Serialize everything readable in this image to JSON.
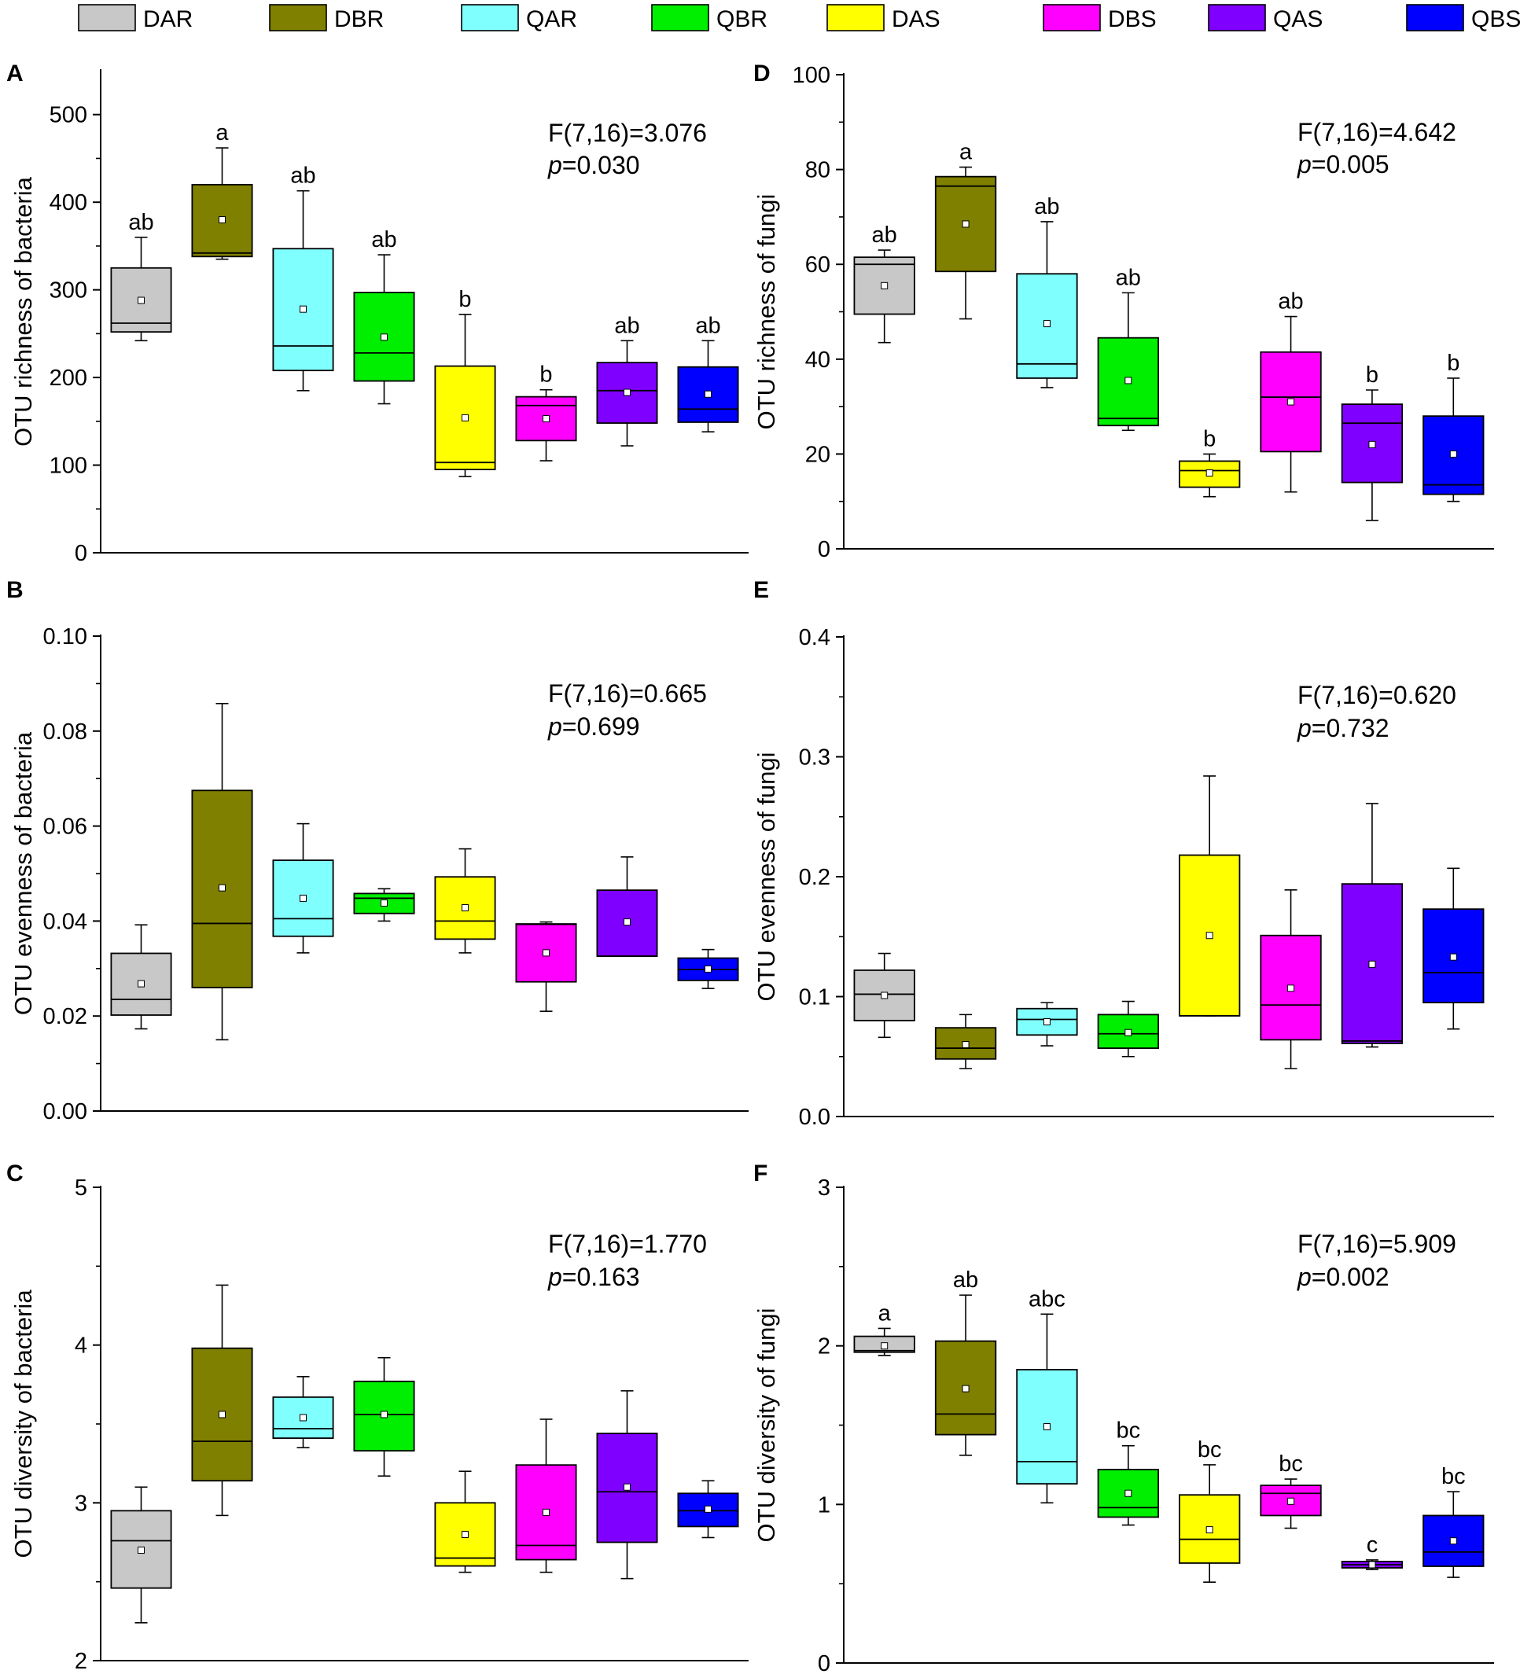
{
  "legend": [
    {
      "code": "DAR",
      "color": "#c8c8c8"
    },
    {
      "code": "DBR",
      "color": "#808000"
    },
    {
      "code": "QAR",
      "color": "#80ffff"
    },
    {
      "code": "QBR",
      "color": "#00ee00"
    },
    {
      "code": "DAS",
      "color": "#ffff00"
    },
    {
      "code": "DBS",
      "color": "#ff00ff"
    },
    {
      "code": "QAS",
      "color": "#8000ff"
    },
    {
      "code": "QBS",
      "color": "#0000ff"
    }
  ],
  "chart_data": [
    {
      "type": "box",
      "panel": "A",
      "ylabel": "OTU richness of bacteria",
      "ylim": [
        0,
        550
      ],
      "yticks": [
        0,
        100,
        200,
        300,
        400,
        500
      ],
      "tick_labels": [
        "0",
        "100",
        "200",
        "300",
        "400",
        "500"
      ],
      "stat_f": "F(7,16)=3.076",
      "stat_p": "=0.030",
      "boxes": [
        {
          "group": "DAR",
          "min": 242,
          "q1": 252,
          "median": 262,
          "q3": 325,
          "max": 360,
          "mean": 288,
          "letter": "ab"
        },
        {
          "group": "DBR",
          "min": 335,
          "q1": 338,
          "median": 342,
          "q3": 420,
          "max": 462,
          "mean": 380,
          "letter": "a"
        },
        {
          "group": "QAR",
          "min": 185,
          "q1": 208,
          "median": 236,
          "q3": 347,
          "max": 413,
          "mean": 278,
          "letter": "ab"
        },
        {
          "group": "QBR",
          "min": 170,
          "q1": 196,
          "median": 228,
          "q3": 297,
          "max": 340,
          "mean": 246,
          "letter": "ab"
        },
        {
          "group": "DAS",
          "min": 87,
          "q1": 95,
          "median": 103,
          "q3": 213,
          "max": 272,
          "mean": 154,
          "letter": "b"
        },
        {
          "group": "DBS",
          "min": 105,
          "q1": 128,
          "median": 168,
          "q3": 178,
          "max": 186,
          "mean": 153,
          "letter": "b"
        },
        {
          "group": "QAS",
          "min": 122,
          "q1": 148,
          "median": 185,
          "q3": 217,
          "max": 242,
          "mean": 183,
          "letter": "ab"
        },
        {
          "group": "QBS",
          "min": 138,
          "q1": 149,
          "median": 164,
          "q3": 212,
          "max": 242,
          "mean": 181,
          "letter": "ab"
        }
      ]
    },
    {
      "type": "box",
      "panel": "D",
      "ylabel": "OTU richness of fungi",
      "ylim": [
        0,
        100
      ],
      "yticks": [
        0,
        20,
        40,
        60,
        80,
        100
      ],
      "tick_labels": [
        "0",
        "20",
        "40",
        "60",
        "80",
        "100"
      ],
      "stat_f": "F(7,16)=4.642",
      "stat_p": "=0.005",
      "boxes": [
        {
          "group": "DAR",
          "min": 43.5,
          "q1": 49.5,
          "median": 60,
          "q3": 61.5,
          "max": 63,
          "mean": 55.5,
          "letter": "ab"
        },
        {
          "group": "DBR",
          "min": 48.5,
          "q1": 58.5,
          "median": 76.5,
          "q3": 78.5,
          "max": 80.5,
          "mean": 68.5,
          "letter": "a"
        },
        {
          "group": "QAR",
          "min": 34,
          "q1": 36,
          "median": 39,
          "q3": 58,
          "max": 69,
          "mean": 47.5,
          "letter": "ab"
        },
        {
          "group": "QBR",
          "min": 25,
          "q1": 26,
          "median": 27.5,
          "q3": 44.5,
          "max": 54,
          "mean": 35.5,
          "letter": "ab"
        },
        {
          "group": "DAS",
          "min": 11,
          "q1": 13,
          "median": 16.5,
          "q3": 18.5,
          "max": 20,
          "mean": 16,
          "letter": "b"
        },
        {
          "group": "DBS",
          "min": 12,
          "q1": 20.5,
          "median": 32,
          "q3": 41.5,
          "max": 49,
          "mean": 31,
          "letter": "ab"
        },
        {
          "group": "QAS",
          "min": 6,
          "q1": 14,
          "median": 26.5,
          "q3": 30.5,
          "max": 33.5,
          "mean": 22,
          "letter": "b"
        },
        {
          "group": "QBS",
          "min": 10,
          "q1": 11.5,
          "median": 13.5,
          "q3": 28,
          "max": 36,
          "mean": 20,
          "letter": "b"
        }
      ]
    },
    {
      "type": "box",
      "panel": "B",
      "ylabel": "OTU evenness of bacteria",
      "ylim": [
        0,
        0.1
      ],
      "yticks": [
        0,
        0.02,
        0.04,
        0.06,
        0.08,
        0.1
      ],
      "tick_labels": [
        "0.00",
        "0.02",
        "0.04",
        "0.06",
        "0.08",
        "0.10"
      ],
      "stat_f": "F(7,16)=0.665",
      "stat_p": "=0.699",
      "boxes": [
        {
          "group": "DAR",
          "min": 0.0173,
          "q1": 0.0202,
          "median": 0.0235,
          "q3": 0.0332,
          "max": 0.0392,
          "mean": 0.0268,
          "letter": ""
        },
        {
          "group": "DBR",
          "min": 0.015,
          "q1": 0.026,
          "median": 0.0395,
          "q3": 0.0675,
          "max": 0.0858,
          "mean": 0.047,
          "letter": ""
        },
        {
          "group": "QAR",
          "min": 0.0333,
          "q1": 0.0368,
          "median": 0.0405,
          "q3": 0.0528,
          "max": 0.0605,
          "mean": 0.0448,
          "letter": ""
        },
        {
          "group": "QBR",
          "min": 0.04,
          "q1": 0.0416,
          "median": 0.0448,
          "q3": 0.0458,
          "max": 0.0468,
          "mean": 0.0438,
          "letter": ""
        },
        {
          "group": "DAS",
          "min": 0.0333,
          "q1": 0.0362,
          "median": 0.04,
          "q3": 0.0493,
          "max": 0.0552,
          "mean": 0.0428,
          "letter": ""
        },
        {
          "group": "DBS",
          "min": 0.021,
          "q1": 0.0272,
          "median": 0.0393,
          "q3": 0.0394,
          "max": 0.0398,
          "mean": 0.0333,
          "letter": ""
        },
        {
          "group": "QAS",
          "min": 0.0326,
          "q1": 0.0326,
          "median": 0.0326,
          "q3": 0.0465,
          "max": 0.0535,
          "mean": 0.0398,
          "letter": ""
        },
        {
          "group": "QBS",
          "min": 0.0258,
          "q1": 0.0275,
          "median": 0.0298,
          "q3": 0.0322,
          "max": 0.034,
          "mean": 0.0299,
          "letter": ""
        }
      ]
    },
    {
      "type": "box",
      "panel": "E",
      "ylabel": "OTU evenness of fungi",
      "ylim": [
        0,
        0.4
      ],
      "yticks": [
        0,
        0.1,
        0.2,
        0.3,
        0.4
      ],
      "tick_labels": [
        "0.0",
        "0.1",
        "0.2",
        "0.3",
        "0.4"
      ],
      "stat_f": "F(7,16)=0.620",
      "stat_p": "=0.732",
      "boxes": [
        {
          "group": "DAR",
          "min": 0.066,
          "q1": 0.08,
          "median": 0.102,
          "q3": 0.122,
          "max": 0.136,
          "mean": 0.101,
          "letter": ""
        },
        {
          "group": "DBR",
          "min": 0.04,
          "q1": 0.048,
          "median": 0.057,
          "q3": 0.074,
          "max": 0.085,
          "mean": 0.06,
          "letter": ""
        },
        {
          "group": "QAR",
          "min": 0.059,
          "q1": 0.068,
          "median": 0.081,
          "q3": 0.09,
          "max": 0.095,
          "mean": 0.079,
          "letter": ""
        },
        {
          "group": "QBR",
          "min": 0.05,
          "q1": 0.057,
          "median": 0.069,
          "q3": 0.085,
          "max": 0.096,
          "mean": 0.07,
          "letter": ""
        },
        {
          "group": "DAS",
          "min": 0.084,
          "q1": 0.084,
          "median": 0.084,
          "q3": 0.218,
          "max": 0.284,
          "mean": 0.151,
          "letter": ""
        },
        {
          "group": "DBS",
          "min": 0.04,
          "q1": 0.064,
          "median": 0.093,
          "q3": 0.151,
          "max": 0.189,
          "mean": 0.107,
          "letter": ""
        },
        {
          "group": "QAS",
          "min": 0.058,
          "q1": 0.061,
          "median": 0.063,
          "q3": 0.194,
          "max": 0.261,
          "mean": 0.127,
          "letter": ""
        },
        {
          "group": "QBS",
          "min": 0.073,
          "q1": 0.095,
          "median": 0.12,
          "q3": 0.173,
          "max": 0.207,
          "mean": 0.133,
          "letter": ""
        }
      ]
    },
    {
      "type": "box",
      "panel": "C",
      "ylabel": "OTU diversity of bacteria",
      "ylim": [
        2,
        5
      ],
      "yticks": [
        2,
        3,
        4,
        5
      ],
      "tick_labels": [
        "2",
        "3",
        "4",
        "5"
      ],
      "stat_f": "F(7,16)=1.770",
      "stat_p": "=0.163",
      "boxes": [
        {
          "group": "DAR",
          "min": 2.24,
          "q1": 2.46,
          "median": 2.76,
          "q3": 2.95,
          "max": 3.1,
          "mean": 2.7,
          "letter": ""
        },
        {
          "group": "DBR",
          "min": 2.92,
          "q1": 3.14,
          "median": 3.39,
          "q3": 3.98,
          "max": 4.38,
          "mean": 3.56,
          "letter": ""
        },
        {
          "group": "QAR",
          "min": 3.35,
          "q1": 3.41,
          "median": 3.47,
          "q3": 3.67,
          "max": 3.8,
          "mean": 3.54,
          "letter": ""
        },
        {
          "group": "QBR",
          "min": 3.17,
          "q1": 3.33,
          "median": 3.56,
          "q3": 3.77,
          "max": 3.92,
          "mean": 3.56,
          "letter": ""
        },
        {
          "group": "DAS",
          "min": 2.56,
          "q1": 2.6,
          "median": 2.65,
          "q3": 3.0,
          "max": 3.2,
          "mean": 2.8,
          "letter": ""
        },
        {
          "group": "DBS",
          "min": 2.56,
          "q1": 2.64,
          "median": 2.73,
          "q3": 3.24,
          "max": 3.53,
          "mean": 2.94,
          "letter": ""
        },
        {
          "group": "QAS",
          "min": 2.52,
          "q1": 2.75,
          "median": 3.07,
          "q3": 3.44,
          "max": 3.71,
          "mean": 3.1,
          "letter": ""
        },
        {
          "group": "QBS",
          "min": 2.78,
          "q1": 2.85,
          "median": 2.95,
          "q3": 3.06,
          "max": 3.14,
          "mean": 2.96,
          "letter": ""
        }
      ]
    },
    {
      "type": "box",
      "panel": "F",
      "ylabel": "OTU diversity of fungi",
      "ylim": [
        0,
        3
      ],
      "yticks": [
        0,
        1,
        2,
        3
      ],
      "tick_labels": [
        "0",
        "1",
        "2",
        "3"
      ],
      "stat_f": "F(7,16)=5.909",
      "stat_p": "=0.002",
      "boxes": [
        {
          "group": "DAR",
          "min": 1.94,
          "q1": 1.96,
          "median": 1.97,
          "q3": 2.06,
          "max": 2.11,
          "mean": 2.0,
          "letter": "a"
        },
        {
          "group": "DBR",
          "min": 1.31,
          "q1": 1.44,
          "median": 1.57,
          "q3": 2.03,
          "max": 2.32,
          "mean": 1.73,
          "letter": "ab"
        },
        {
          "group": "QAR",
          "min": 1.01,
          "q1": 1.13,
          "median": 1.27,
          "q3": 1.85,
          "max": 2.2,
          "mean": 1.49,
          "letter": "abc"
        },
        {
          "group": "QBR",
          "min": 0.87,
          "q1": 0.92,
          "median": 0.98,
          "q3": 1.22,
          "max": 1.37,
          "mean": 1.07,
          "letter": "bc"
        },
        {
          "group": "DAS",
          "min": 0.51,
          "q1": 0.63,
          "median": 0.78,
          "q3": 1.06,
          "max": 1.25,
          "mean": 0.84,
          "letter": "bc"
        },
        {
          "group": "DBS",
          "min": 0.85,
          "q1": 0.93,
          "median": 1.07,
          "q3": 1.12,
          "max": 1.16,
          "mean": 1.02,
          "letter": "bc"
        },
        {
          "group": "QAS",
          "min": 0.59,
          "q1": 0.6,
          "median": 0.62,
          "q3": 0.64,
          "max": 0.65,
          "mean": 0.62,
          "letter": "c"
        },
        {
          "group": "QBS",
          "min": 0.54,
          "q1": 0.61,
          "median": 0.7,
          "q3": 0.93,
          "max": 1.08,
          "mean": 0.77,
          "letter": "bc"
        }
      ]
    }
  ]
}
